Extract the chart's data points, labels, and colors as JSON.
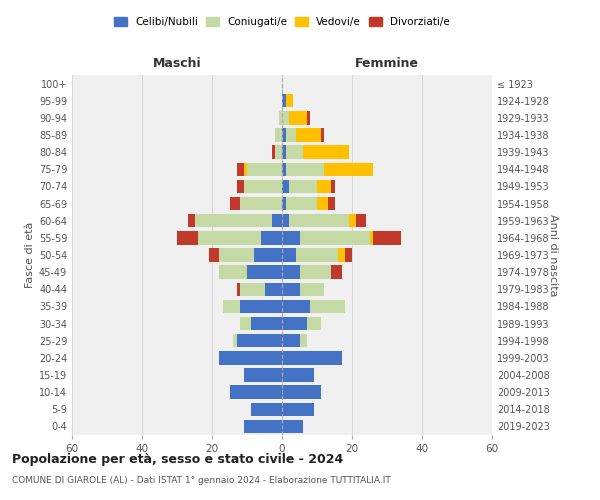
{
  "age_groups": [
    "0-4",
    "5-9",
    "10-14",
    "15-19",
    "20-24",
    "25-29",
    "30-34",
    "35-39",
    "40-44",
    "45-49",
    "50-54",
    "55-59",
    "60-64",
    "65-69",
    "70-74",
    "75-79",
    "80-84",
    "85-89",
    "90-94",
    "95-99",
    "100+"
  ],
  "birth_years": [
    "2019-2023",
    "2014-2018",
    "2009-2013",
    "2004-2008",
    "1999-2003",
    "1994-1998",
    "1989-1993",
    "1984-1988",
    "1979-1983",
    "1974-1978",
    "1969-1973",
    "1964-1968",
    "1959-1963",
    "1954-1958",
    "1949-1953",
    "1944-1948",
    "1939-1943",
    "1934-1938",
    "1929-1933",
    "1924-1928",
    "≤ 1923"
  ],
  "males": {
    "celibe": [
      11,
      9,
      15,
      11,
      18,
      13,
      9,
      12,
      5,
      10,
      8,
      6,
      3,
      0,
      0,
      0,
      0,
      0,
      0,
      0,
      0
    ],
    "coniugato": [
      0,
      0,
      0,
      0,
      0,
      1,
      3,
      5,
      7,
      8,
      10,
      18,
      22,
      12,
      11,
      10,
      2,
      2,
      1,
      0,
      0
    ],
    "vedovo": [
      0,
      0,
      0,
      0,
      0,
      0,
      0,
      0,
      0,
      0,
      0,
      0,
      0,
      0,
      0,
      1,
      0,
      0,
      0,
      0,
      0
    ],
    "divorziato": [
      0,
      0,
      0,
      0,
      0,
      0,
      0,
      0,
      1,
      0,
      3,
      6,
      2,
      3,
      2,
      2,
      1,
      0,
      0,
      0,
      0
    ]
  },
  "females": {
    "nubile": [
      6,
      9,
      11,
      9,
      17,
      5,
      7,
      8,
      5,
      5,
      4,
      5,
      2,
      1,
      2,
      1,
      1,
      1,
      0,
      1,
      0
    ],
    "coniugata": [
      0,
      0,
      0,
      0,
      0,
      2,
      4,
      10,
      7,
      9,
      12,
      20,
      17,
      9,
      8,
      11,
      5,
      3,
      2,
      0,
      0
    ],
    "vedova": [
      0,
      0,
      0,
      0,
      0,
      0,
      0,
      0,
      0,
      0,
      2,
      1,
      2,
      3,
      4,
      14,
      13,
      7,
      5,
      2,
      0
    ],
    "divorziata": [
      0,
      0,
      0,
      0,
      0,
      0,
      0,
      0,
      0,
      3,
      2,
      8,
      3,
      2,
      1,
      0,
      0,
      1,
      1,
      0,
      0
    ]
  },
  "colors": {
    "celibe_nubile": "#4472C4",
    "coniugato_coniugata": "#c5d9a4",
    "vedovo_vedova": "#ffc000",
    "divorziato_divorziata": "#c0392b"
  },
  "title": "Popolazione per età, sesso e stato civile - 2024",
  "subtitle": "COMUNE DI GIAROLE (AL) - Dati ISTAT 1° gennaio 2024 - Elaborazione TUTTITALIA.IT",
  "xlabel_left": "Maschi",
  "xlabel_right": "Femmine",
  "ylabel_left": "Fasce di età",
  "ylabel_right": "Anni di nascita",
  "xlim": 60,
  "bg_color": "#ffffff",
  "plot_bg_color": "#f0f0f0"
}
